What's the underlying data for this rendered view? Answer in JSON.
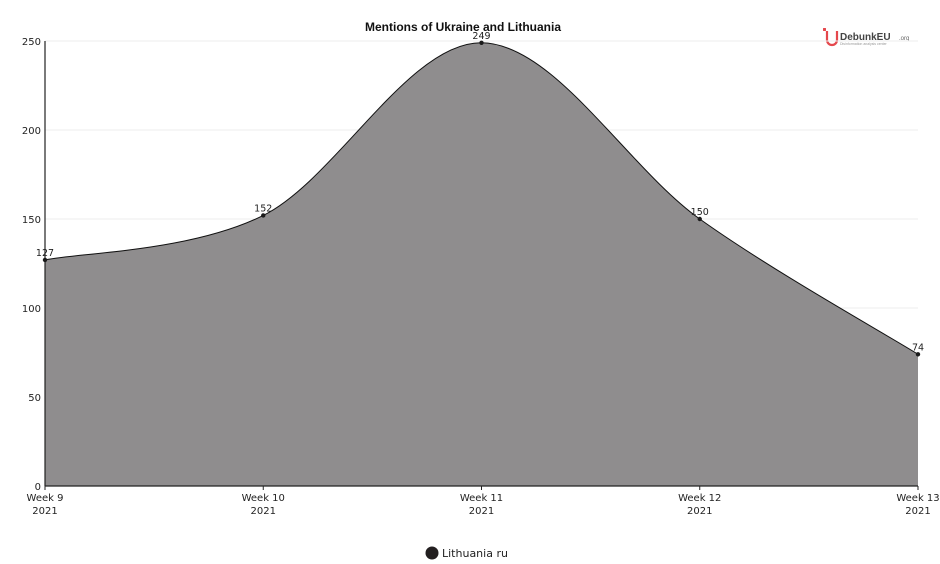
{
  "chart_data": {
    "type": "area",
    "title": "Mentions of Ukraine and Lithuania",
    "categories": [
      {
        "week": "Week 9",
        "year": "2021"
      },
      {
        "week": "Week 10",
        "year": "2021"
      },
      {
        "week": "Week 11",
        "year": "2021"
      },
      {
        "week": "Week 12",
        "year": "2021"
      },
      {
        "week": "Week 13",
        "year": "2021"
      }
    ],
    "series": [
      {
        "name": "Lithuania ru",
        "values": [
          127,
          152,
          249,
          150,
          74
        ],
        "color": "#8f8d8e",
        "marker_color": "#1a1a1a"
      }
    ],
    "ylim": [
      0,
      250
    ],
    "yticks": [
      0,
      50,
      100,
      150,
      200,
      250
    ],
    "grid": true,
    "legend_position": "bottom-center"
  },
  "branding": {
    "logo_text": "DebunkEU",
    "logo_suffix": ".org",
    "logo_tagline": "Disinformation analysis center",
    "logo_color": "#e5484d"
  }
}
